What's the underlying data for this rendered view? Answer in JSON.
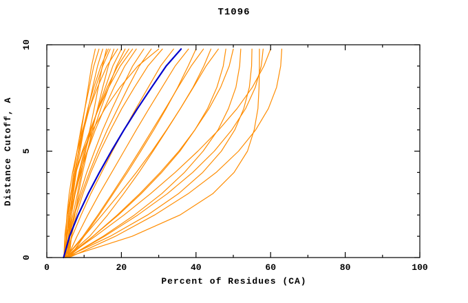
{
  "colors": {
    "model": "#FF8C00",
    "highlight": "#0000CC",
    "axis": "#000000",
    "background": "#FFFFFF"
  },
  "chart_data": {
    "type": "line",
    "title": "T1096",
    "xlabel": "Percent of Residues (CA)",
    "ylabel": "Distance Cutoff, A",
    "xlim": [
      0,
      100
    ],
    "ylim": [
      0,
      10
    ],
    "x_ticks": [
      0,
      20,
      40,
      60,
      80,
      100
    ],
    "y_ticks": [
      0,
      5,
      10
    ],
    "x_minor_step": 10,
    "y_minor_step": 1,
    "grid": false,
    "legend": "none",
    "y_tick_labels_rotated": true,
    "y_levels": [
      0,
      1,
      2,
      3,
      4,
      5,
      6,
      7,
      8,
      9,
      9.8
    ],
    "series": [
      {
        "name": "curve-01",
        "role": "model",
        "x": [
          5,
          5.5,
          6.2,
          6.9,
          7.7,
          8.5,
          9.3,
          10.2,
          11.1,
          12.0,
          13
        ]
      },
      {
        "name": "curve-02",
        "role": "model",
        "x": [
          5.5,
          5.8,
          6.3,
          7.1,
          7.9,
          8.9,
          9.9,
          11.1,
          12.3,
          13.6,
          15
        ]
      },
      {
        "name": "curve-03",
        "role": "model",
        "x": [
          4.8,
          5.9,
          7.0,
          8.2,
          9.3,
          10.4,
          11.5,
          12.7,
          13.8,
          14.9,
          16
        ]
      },
      {
        "name": "curve-04",
        "role": "model",
        "x": [
          5.2,
          5.4,
          5.8,
          6.5,
          7.5,
          8.6,
          9.9,
          11.4,
          13.1,
          15.0,
          17
        ]
      },
      {
        "name": "curve-05",
        "role": "model",
        "x": [
          6,
          6.6,
          7.5,
          8.5,
          9.6,
          10.9,
          12.2,
          13.6,
          15.0,
          16.5,
          18
        ]
      },
      {
        "name": "curve-06",
        "role": "model",
        "x": [
          5,
          5.1,
          5.4,
          6.0,
          6.9,
          8.1,
          9.6,
          11.4,
          13.6,
          16.1,
          19
        ]
      },
      {
        "name": "curve-07",
        "role": "model",
        "x": [
          5.5,
          5.9,
          6.6,
          7.6,
          8.8,
          10.3,
          11.9,
          13.7,
          15.7,
          17.7,
          20
        ]
      },
      {
        "name": "curve-08",
        "role": "model",
        "x": [
          4.5,
          5.2,
          6.2,
          7.6,
          9.1,
          10.8,
          12.6,
          14.5,
          16.6,
          18.7,
          21
        ]
      },
      {
        "name": "curve-09",
        "role": "model",
        "x": [
          6,
          6.2,
          6.6,
          7.4,
          8.6,
          10,
          11.8,
          13.8,
          16.2,
          19,
          22
        ]
      },
      {
        "name": "curve-10",
        "role": "model",
        "x": [
          5,
          5.4,
          6.2,
          7.5,
          9.0,
          10.9,
          13.0,
          15.4,
          18.0,
          20.9,
          24
        ]
      },
      {
        "name": "curve-11",
        "role": "model",
        "x": [
          5.5,
          6.2,
          7.3,
          8.9,
          10.7,
          12.8,
          15.0,
          17.5,
          20.2,
          23.0,
          26
        ]
      },
      {
        "name": "curve-12",
        "role": "model",
        "x": [
          5,
          5.9,
          7.4,
          9.3,
          11.4,
          13.7,
          16.2,
          19.0,
          21.8,
          24.8,
          28
        ]
      },
      {
        "name": "curve-13",
        "role": "model",
        "x": [
          6,
          6.6,
          7.9,
          9.7,
          11.8,
          14.3,
          17.1,
          20.1,
          23.5,
          27.1,
          31
        ]
      },
      {
        "name": "curve-14",
        "role": "model",
        "x": [
          5,
          6.8,
          9.2,
          11.8,
          14.7,
          17.6,
          20.7,
          23.9,
          27.2,
          30.5,
          34
        ]
      },
      {
        "name": "curve-15",
        "role": "model",
        "x": [
          5.5,
          8.1,
          11.0,
          14.1,
          17.4,
          20.7,
          24.0,
          27.4,
          30.9,
          34.4,
          38
        ]
      },
      {
        "name": "curve-16",
        "role": "model",
        "x": [
          5,
          9.7,
          13.7,
          17.5,
          21.2,
          24.8,
          28.3,
          31.8,
          35.2,
          38.7,
          42
        ]
      },
      {
        "name": "curve-17",
        "role": "model",
        "x": [
          5,
          12.4,
          19.2,
          25.3,
          30.8,
          35.7,
          39.7,
          43.1,
          45.6,
          47.3,
          48
        ]
      },
      {
        "name": "curve-18",
        "role": "model",
        "x": [
          5.5,
          15.1,
          23.5,
          30.8,
          36.9,
          41.9,
          45.9,
          48.7,
          50.7,
          51.7,
          52
        ]
      },
      {
        "name": "curve-19",
        "role": "model",
        "x": [
          5,
          17.0,
          27.0,
          35.3,
          41.8,
          46.8,
          50.4,
          52.8,
          54.3,
          54.9,
          55
        ]
      },
      {
        "name": "curve-20",
        "role": "model",
        "x": [
          5.5,
          15.5,
          24.4,
          32.3,
          39.1,
          44.9,
          49.6,
          53.3,
          55.9,
          57.5,
          58
        ]
      },
      {
        "name": "curve-21",
        "role": "model",
        "x": [
          5,
          13.0,
          20.7,
          27.8,
          34.4,
          40.5,
          46.1,
          51.0,
          55.1,
          58.2,
          60
        ]
      },
      {
        "name": "curve-22",
        "role": "model",
        "x": [
          6,
          18.4,
          28.9,
          37.9,
          45.4,
          51.4,
          56.0,
          59.4,
          61.6,
          62.7,
          63
        ]
      },
      {
        "name": "curve-23",
        "role": "model",
        "x": [
          5,
          22.9,
          35.7,
          44.5,
          50.2,
          53.8,
          55.6,
          56.6,
          56.9,
          57,
          57
        ]
      },
      {
        "name": "curve-24",
        "role": "model",
        "x": [
          5,
          10.0,
          14.8,
          19.5,
          24.0,
          28.2,
          32.1,
          35.8,
          39.2,
          42.1,
          44
        ]
      },
      {
        "name": "curve-25",
        "role": "model",
        "x": [
          5.5,
          12.4,
          18.9,
          24.9,
          30.4,
          35.4,
          39.7,
          43.5,
          46.6,
          48.9,
          50
        ]
      },
      {
        "name": "curve-26",
        "role": "model",
        "x": [
          5,
          11.5,
          16.3,
          20.6,
          24.7,
          28.5,
          32.2,
          35.8,
          39.3,
          42.7,
          46
        ]
      },
      {
        "name": "curve-27",
        "role": "model",
        "x": [
          6,
          10.0,
          14.0,
          17.8,
          21.6,
          25.2,
          28.7,
          32.0,
          35.1,
          37.9,
          40
        ]
      },
      {
        "name": "curve-28",
        "role": "model",
        "x": [
          5.2,
          5.4,
          5.9,
          6.5,
          7.2,
          8.1,
          9.1,
          10.2,
          11.4,
          12.6,
          14
        ]
      },
      {
        "name": "curve-29",
        "role": "model",
        "x": [
          5.8,
          5.9,
          6.2,
          6.8,
          7.5,
          8.5,
          9.7,
          11.0,
          12.6,
          14.5,
          16.5
        ]
      },
      {
        "name": "curve-30",
        "role": "model",
        "x": [
          4.6,
          4.8,
          5.5,
          6.5,
          7.8,
          9.5,
          11.6,
          13.9,
          16.6,
          19.7,
          23
        ]
      },
      {
        "name": "curve-31",
        "role": "model",
        "x": [
          5,
          5.1,
          5.5,
          6.4,
          7.8,
          9.7,
          12.3,
          15.6,
          19.6,
          24.4,
          30
        ]
      },
      {
        "name": "highlight-curve",
        "role": "highlight",
        "x": [
          4.5,
          6.1,
          8.4,
          11.1,
          14.1,
          17.3,
          20.7,
          24.3,
          28.1,
          32.0,
          36
        ]
      }
    ]
  }
}
